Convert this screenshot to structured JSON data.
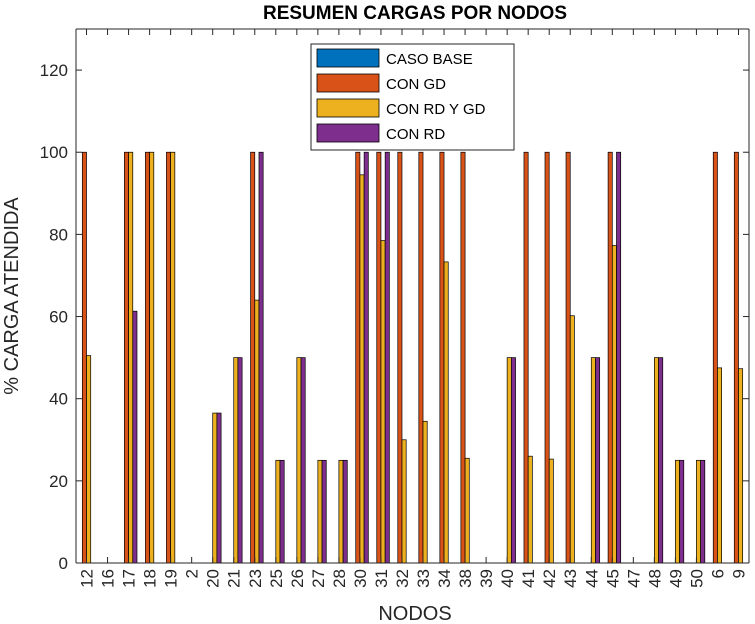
{
  "chart_data": {
    "type": "bar",
    "title": "RESUMEN CARGAS POR NODOS",
    "xlabel": "NODOS",
    "ylabel": "% CARGA ATENDIDA",
    "ylim": [
      0,
      130
    ],
    "yticks": [
      0,
      20,
      40,
      60,
      80,
      100,
      120
    ],
    "grid": false,
    "legend_position": "top-center",
    "categories": [
      "12",
      "16",
      "17",
      "18",
      "19",
      "2",
      "20",
      "21",
      "23",
      "25",
      "26",
      "27",
      "28",
      "30",
      "31",
      "32",
      "33",
      "34",
      "38",
      "39",
      "40",
      "41",
      "42",
      "43",
      "44",
      "45",
      "47",
      "48",
      "49",
      "50",
      "6",
      "9"
    ],
    "series": [
      {
        "name": "CASO BASE",
        "color": "#0072BD",
        "values": [
          0,
          0,
          0,
          0,
          0,
          0,
          0,
          0,
          0,
          0,
          0,
          0,
          0,
          0,
          0,
          0,
          0,
          0,
          0,
          0,
          0,
          0,
          0,
          0,
          0,
          0,
          0,
          0,
          0,
          0,
          0,
          0
        ]
      },
      {
        "name": "CON GD",
        "color": "#D95319",
        "values": [
          100,
          0,
          100,
          100,
          100,
          0,
          0,
          0,
          100,
          0,
          0,
          0,
          0,
          100,
          100,
          100,
          100,
          100,
          100,
          0,
          0,
          100,
          100,
          100,
          0,
          100,
          0,
          0,
          0,
          0,
          100,
          100
        ]
      },
      {
        "name": "CON RD Y GD",
        "color": "#EDB120",
        "values": [
          50.5,
          0,
          100,
          100,
          100,
          0,
          36.5,
          50,
          64,
          25,
          50,
          25,
          25,
          94.5,
          78.5,
          30,
          34.5,
          73.3,
          25.5,
          0,
          50,
          26,
          25.3,
          60.2,
          50,
          77.3,
          0,
          50,
          25,
          25,
          47.5,
          47.3
        ]
      },
      {
        "name": "CON RD",
        "color": "#7E2F8E",
        "values": [
          0,
          0,
          61.3,
          0,
          0,
          0,
          36.5,
          50,
          100,
          25,
          50,
          25,
          25,
          100,
          100,
          0,
          0,
          0,
          0,
          0,
          50,
          0,
          0,
          0,
          50,
          100,
          0,
          50,
          25,
          25,
          0,
          0
        ]
      }
    ]
  }
}
